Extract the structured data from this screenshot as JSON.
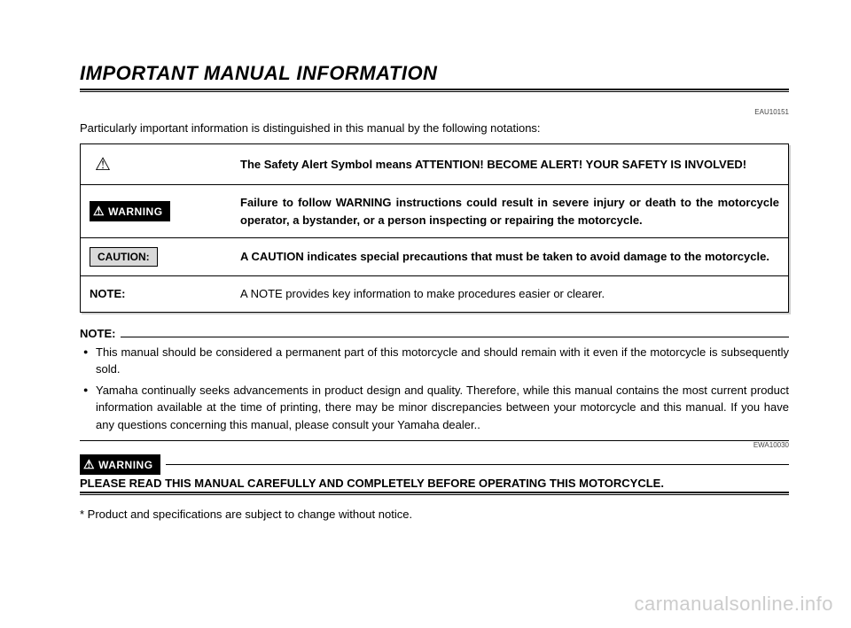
{
  "header": {
    "title": "IMPORTANT MANUAL INFORMATION",
    "code": "EAU10151"
  },
  "intro": "Particularly important information is distinguished in this manual by the following notations:",
  "notations": [
    {
      "symbol_type": "safety",
      "icon": "⚠",
      "label": "",
      "desc": "The Safety Alert Symbol means ATTENTION! BECOME ALERT! YOUR SAFETY IS INVOLVED!",
      "desc_bold": true
    },
    {
      "symbol_type": "warning",
      "icon": "⚠",
      "label": "WARNING",
      "desc": "Failure to follow WARNING instructions could result in severe injury or death to the motorcycle operator, a bystander, or a person inspecting or repairing the motorcycle.",
      "desc_bold": true
    },
    {
      "symbol_type": "caution",
      "label": "CAUTION:",
      "desc": "A CAUTION indicates special precautions that must be taken to avoid damage to the motorcycle.",
      "desc_bold": true
    },
    {
      "symbol_type": "note",
      "label": "NOTE:",
      "desc": "A NOTE provides key information to make procedures easier or clearer.",
      "desc_bold": false
    }
  ],
  "note_section": {
    "label": "NOTE:",
    "bullets": [
      "This manual should be considered a permanent part of this motorcycle and should remain with it even if the motorcycle is subsequently sold.",
      "Yamaha continually seeks advancements in product design and quality. Therefore, while this manual contains the most current product information available at the time of printing, there may be minor discrepancies between your motorcycle and this manual. If you have any questions concerning this manual, please consult your Yamaha dealer.."
    ]
  },
  "warning_section": {
    "badge_icon": "⚠",
    "badge_label": "WARNING",
    "code": "EWA10030",
    "text": "PLEASE READ THIS MANUAL CAREFULLY AND COMPLETELY BEFORE OPERATING THIS MOTORCYCLE."
  },
  "footnote": "* Product and specifications are subject to change without notice.",
  "watermark": "carmanualsonline.info",
  "colors": {
    "text": "#000000",
    "background": "#ffffff",
    "caution_bg": "#d9d9d9",
    "watermark": "#cccccc",
    "shadow": "#d0d0d0"
  },
  "fonts": {
    "title_size_pt": 16,
    "body_size_pt": 10,
    "code_size_pt": 6
  }
}
